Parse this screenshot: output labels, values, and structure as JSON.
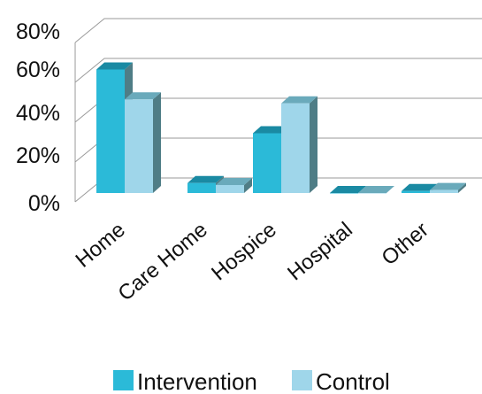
{
  "chart_data": {
    "type": "bar",
    "style": "3d-clustered-column",
    "title": "",
    "xlabel": "",
    "ylabel": "",
    "categories": [
      "Home",
      "Care Home",
      "Hospice",
      "Hospital",
      "Other"
    ],
    "series": [
      {
        "name": "Intervention",
        "values": [
          62,
          5,
          30,
          0,
          1
        ],
        "color": "#2bbad8"
      },
      {
        "name": "Control",
        "values": [
          47,
          4,
          45,
          0,
          1.5
        ],
        "color": "#9fd6ea"
      }
    ],
    "yticks": [
      "0%",
      "20%",
      "40%",
      "60%",
      "80%"
    ],
    "ylim": [
      0,
      80
    ],
    "grid": true,
    "legend": "bottom",
    "colors": {
      "grid": "#9a9a9a",
      "side": "#4f7d86",
      "top": "#1a8aa3"
    }
  }
}
